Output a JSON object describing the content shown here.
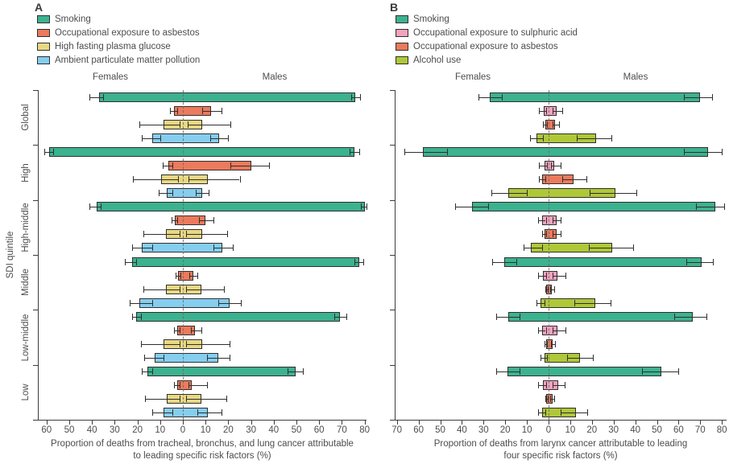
{
  "figure": {
    "females_header": "Females",
    "males_header": "Males",
    "y_axis_label": "SDI quintile"
  },
  "colors": {
    "smoking": "#3cb28f",
    "asbestos": "#ec7a5c",
    "glucose": "#e8d882",
    "pollution": "#85ceef",
    "sulphuric_acid": "#f2a3be",
    "alcohol": "#afc838",
    "axis": "#3c3c3c",
    "text": "#4d4d4d"
  },
  "chart_data": [
    {
      "type": "bar",
      "panel_label": "A",
      "orientation": "horizontal-diverging",
      "xlabel": "Proportion of deaths from tracheal, bronchus, and lung cancer attributable to leading specific risk factors (%)",
      "axis": {
        "female_max": 60,
        "male_max": 80,
        "step": 10
      },
      "x_tick_labels": [
        "60",
        "50",
        "40",
        "30",
        "20",
        "10",
        "0",
        "10",
        "20",
        "30",
        "40",
        "50",
        "60",
        "70",
        "80"
      ],
      "categories": [
        "Global",
        "High",
        "High-middle",
        "Middle",
        "Low-middle",
        "Low"
      ],
      "grid": false,
      "legend_position": "top-left",
      "series": [
        {
          "name": "Smoking",
          "key": "smoking",
          "color": "#3cb28f",
          "data": [
            {
              "female": 37,
              "female_ci": [
                35,
                41
              ],
              "male": 76,
              "male_ci": [
                74,
                78
              ]
            },
            {
              "female": 59,
              "female_ci": [
                57,
                61
              ],
              "male": 75.5,
              "male_ci": [
                73.5,
                77.5
              ]
            },
            {
              "female": 38,
              "female_ci": [
                36,
                41
              ],
              "male": 80,
              "male_ci": [
                78.5,
                81
              ]
            },
            {
              "female": 22.5,
              "female_ci": [
                20.5,
                25.5
              ],
              "male": 77.5,
              "male_ci": [
                75.5,
                79.5
              ]
            },
            {
              "female": 20.5,
              "female_ci": [
                18.5,
                22.5
              ],
              "male": 69,
              "male_ci": [
                66.5,
                72
              ]
            },
            {
              "female": 15.5,
              "female_ci": [
                13.5,
                18
              ],
              "male": 49.5,
              "male_ci": [
                46,
                53
              ]
            }
          ]
        },
        {
          "name": "Occupational exposure to asbestos",
          "key": "asbestos",
          "color": "#ec7a5c",
          "data": [
            {
              "female": 4,
              "female_ci": [
                2.5,
                5.5
              ],
              "male": 12.5,
              "male_ci": [
                8.5,
                17
              ]
            },
            {
              "female": 6.5,
              "female_ci": [
                4.5,
                9
              ],
              "male": 30,
              "male_ci": [
                21,
                38
              ]
            },
            {
              "female": 3.5,
              "female_ci": [
                2.5,
                5
              ],
              "male": 10,
              "male_ci": [
                7,
                13.5
              ]
            },
            {
              "female": 2,
              "female_ci": [
                1.2,
                3.2
              ],
              "male": 4.5,
              "male_ci": [
                3,
                6.5
              ]
            },
            {
              "female": 2.5,
              "female_ci": [
                1.3,
                4
              ],
              "male": 5.5,
              "male_ci": [
                3.5,
                8
              ]
            },
            {
              "female": 2.5,
              "female_ci": [
                1.3,
                4
              ],
              "male": 4,
              "male_ci": [
                2.5,
                10.5
              ]
            }
          ]
        },
        {
          "name": "High fasting plasma glucose",
          "key": "glucose",
          "color": "#e8d882",
          "data": [
            {
              "female": 8.5,
              "female_ci": [
                1.5,
                19
              ],
              "male": 8.5,
              "male_ci": [
                2,
                21
              ]
            },
            {
              "female": 9.5,
              "female_ci": [
                2,
                22
              ],
              "male": 11,
              "male_ci": [
                2.5,
                25
              ]
            },
            {
              "female": 7.5,
              "female_ci": [
                1.5,
                17.5
              ],
              "male": 8.5,
              "male_ci": [
                1.5,
                19.5
              ]
            },
            {
              "female": 7.5,
              "female_ci": [
                1.5,
                17.5
              ],
              "male": 8,
              "male_ci": [
                1.5,
                18
              ]
            },
            {
              "female": 8.5,
              "female_ci": [
                1.5,
                18.5
              ],
              "male": 8.5,
              "male_ci": [
                1.5,
                20.5
              ]
            },
            {
              "female": 7,
              "female_ci": [
                1.5,
                16.5
              ],
              "male": 8,
              "male_ci": [
                1.5,
                19
              ]
            }
          ]
        },
        {
          "name": "Ambient particulate matter pollution",
          "key": "pollution",
          "color": "#85ceef",
          "data": [
            {
              "female": 13.5,
              "female_ci": [
                10,
                18
              ],
              "male": 16,
              "male_ci": [
                12,
                20
              ]
            },
            {
              "female": 7,
              "female_ci": [
                4.5,
                10.5
              ],
              "male": 8.5,
              "male_ci": [
                5.5,
                11.5
              ]
            },
            {
              "female": 18,
              "female_ci": [
                13.5,
                22.5
              ],
              "male": 17.5,
              "male_ci": [
                13.5,
                22
              ]
            },
            {
              "female": 19,
              "female_ci": [
                13.5,
                23.5
              ],
              "male": 20.5,
              "male_ci": [
                15.5,
                25.5
              ]
            },
            {
              "female": 12.5,
              "female_ci": [
                8.5,
                17
              ],
              "male": 15.5,
              "male_ci": [
                10.5,
                20.5
              ]
            },
            {
              "female": 8.5,
              "female_ci": [
                4.5,
                13.5
              ],
              "male": 11,
              "male_ci": [
                6.5,
                17
              ]
            }
          ]
        }
      ]
    },
    {
      "type": "bar",
      "panel_label": "B",
      "orientation": "horizontal-diverging",
      "xlabel": "Proportion of deaths from larynx cancer attributable to leading four specific risk factors (%)",
      "axis": {
        "female_max": 70,
        "male_max": 80,
        "step": 10
      },
      "x_tick_labels": [
        "70",
        "60",
        "50",
        "40",
        "30",
        "20",
        "10",
        "0",
        "10",
        "20",
        "30",
        "40",
        "50",
        "60",
        "70",
        "80"
      ],
      "categories": [
        "Global",
        "High",
        "High-middle",
        "Middle",
        "Low-middle",
        "Low"
      ],
      "grid": false,
      "legend_position": "top-left",
      "series": [
        {
          "name": "Smoking",
          "key": "smoking",
          "color": "#3cb28f",
          "data": [
            {
              "female": 27,
              "female_ci": [
                21.5,
                32.5
              ],
              "male": 70,
              "male_ci": [
                62.5,
                75.5
              ]
            },
            {
              "female": 58,
              "female_ci": [
                47,
                66.5
              ],
              "male": 73.5,
              "male_ci": [
                62.5,
                80
              ]
            },
            {
              "female": 35.5,
              "female_ci": [
                28,
                43
              ],
              "male": 77,
              "male_ci": [
                68,
                81
              ]
            },
            {
              "female": 20.5,
              "female_ci": [
                15,
                26
              ],
              "male": 70.5,
              "male_ci": [
                63.5,
                76
              ]
            },
            {
              "female": 18.5,
              "female_ci": [
                13.5,
                24
              ],
              "male": 66.5,
              "male_ci": [
                58,
                73
              ]
            },
            {
              "female": 19,
              "female_ci": [
                13.5,
                24
              ],
              "male": 52,
              "male_ci": [
                43,
                60
              ]
            }
          ]
        },
        {
          "name": "Occupational exposure to sulphuric acid",
          "key": "sulphuric-acid",
          "color": "#f2a3be",
          "data": [
            {
              "female": 2.2,
              "female_ci": [
                1,
                4.3
              ],
              "male": 3.7,
              "male_ci": [
                1.8,
                6.4
              ]
            },
            {
              "female": 1.9,
              "female_ci": [
                0.9,
                4.3
              ],
              "male": 2.7,
              "male_ci": [
                1.2,
                5.6
              ]
            },
            {
              "female": 2.9,
              "female_ci": [
                1.3,
                4.7
              ],
              "male": 3.7,
              "male_ci": [
                1.8,
                5.6
              ]
            },
            {
              "female": 2.5,
              "female_ci": [
                1.2,
                4.9
              ],
              "male": 4,
              "male_ci": [
                1.8,
                7.7
              ]
            },
            {
              "female": 2.9,
              "female_ci": [
                1.3,
                4.9
              ],
              "male": 4.2,
              "male_ci": [
                2,
                7.7
              ]
            },
            {
              "female": 2.5,
              "female_ci": [
                1.2,
                4.7
              ],
              "male": 4.6,
              "male_ci": [
                2,
                7.4
              ]
            }
          ]
        },
        {
          "name": "Occupational exposure to asbestos",
          "key": "asbestos",
          "color": "#ec7a5c",
          "data": [
            {
              "female": 1.6,
              "female_ci": [
                0.9,
                2.5
              ],
              "male": 3.1,
              "male_ci": [
                1.8,
                4.9
              ]
            },
            {
              "female": 2.9,
              "female_ci": [
                1.5,
                4.3
              ],
              "male": 11.5,
              "male_ci": [
                6.5,
                17.5
              ]
            },
            {
              "female": 1.9,
              "female_ci": [
                1,
                2.9
              ],
              "male": 3.7,
              "male_ci": [
                1.8,
                5.6
              ]
            },
            {
              "female": 1,
              "female_ci": [
                0.5,
                1.6
              ],
              "male": 1.5,
              "male_ci": [
                0.8,
                2.5
              ]
            },
            {
              "female": 1.2,
              "female_ci": [
                0.6,
                2
              ],
              "male": 1.9,
              "male_ci": [
                1,
                3
              ]
            },
            {
              "female": 1,
              "female_ci": [
                0.5,
                1.6
              ],
              "male": 1.7,
              "male_ci": [
                0.9,
                2.7
              ]
            }
          ]
        },
        {
          "name": "Alcohol use",
          "key": "alcohol",
          "color": "#afc838",
          "data": [
            {
              "female": 5.5,
              "female_ci": [
                2.5,
                8.5
              ],
              "male": 22,
              "male_ci": [
                13,
                29
              ]
            },
            {
              "female": 18.5,
              "female_ci": [
                10,
                26.5
              ],
              "male": 31,
              "male_ci": [
                19,
                40.5
              ]
            },
            {
              "female": 8,
              "female_ci": [
                3,
                11.5
              ],
              "male": 29.5,
              "male_ci": [
                18.5,
                39
              ]
            },
            {
              "female": 3.7,
              "female_ci": [
                2,
                5.6
              ],
              "male": 21.5,
              "male_ci": [
                12,
                28.5
              ]
            },
            {
              "female": 2,
              "female_ci": [
                0.7,
                3.7
              ],
              "male": 14.5,
              "male_ci": [
                8.5,
                20.5
              ]
            },
            {
              "female": 3,
              "female_ci": [
                1.6,
                4.7
              ],
              "male": 12.5,
              "male_ci": [
                5.5,
                18
              ]
            }
          ]
        }
      ]
    }
  ]
}
